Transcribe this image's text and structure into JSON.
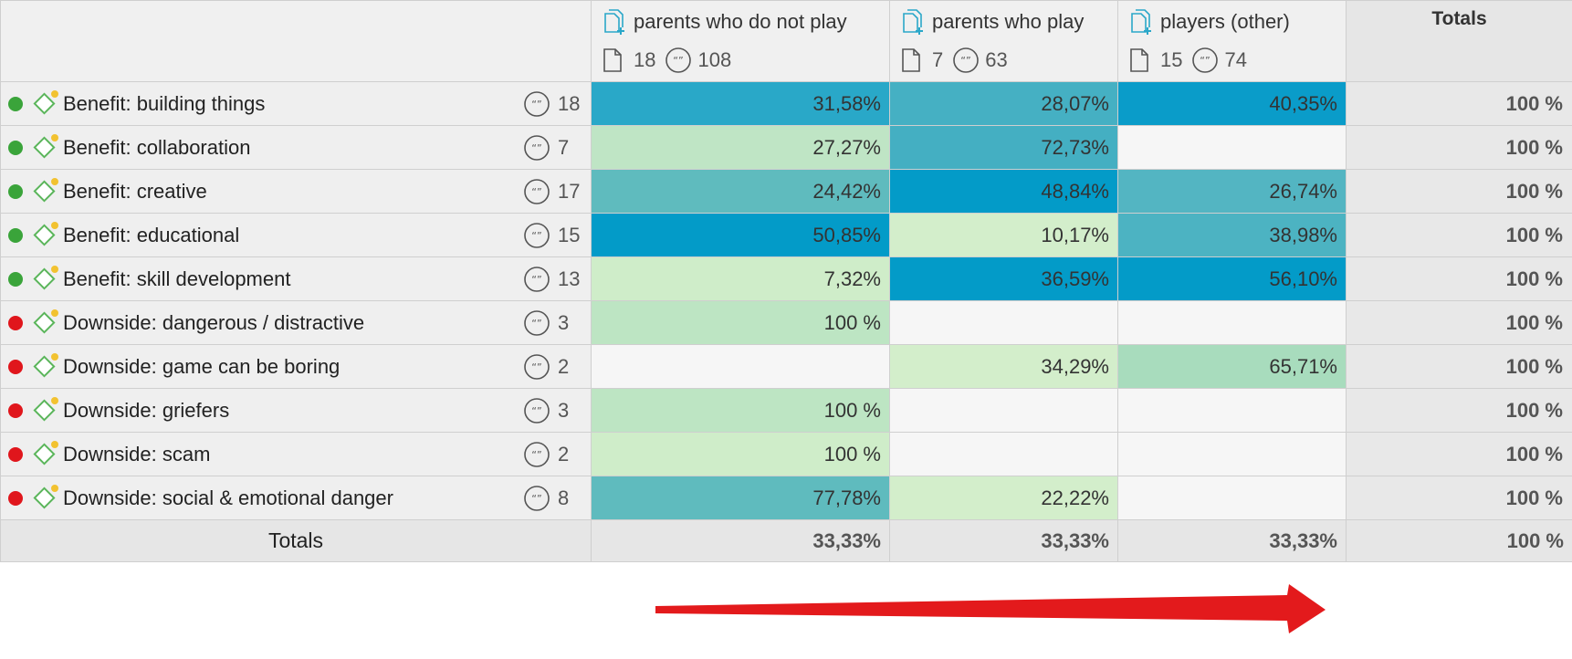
{
  "colors": {
    "empty": "#f6f6f6",
    "green_dot": "#3aa43a",
    "red_dot": "#e0161c",
    "arrow": "#e31a1c"
  },
  "columns": [
    {
      "title": "parents who do not play",
      "docs": "18",
      "quotes": "108"
    },
    {
      "title": "parents who play",
      "docs": "7",
      "quotes": "63"
    },
    {
      "title": "players (other)",
      "docs": "15",
      "quotes": "74"
    }
  ],
  "totals_header": "Totals",
  "rows": [
    {
      "label": "Benefit: building things",
      "status": "green",
      "count": "18",
      "cells": [
        {
          "v": "31,58%",
          "bg": "#29a8c8"
        },
        {
          "v": "28,07%",
          "bg": "#45b0c3"
        },
        {
          "v": "40,35%",
          "bg": "#0a9cc9"
        }
      ],
      "total": "100 %"
    },
    {
      "label": "Benefit: collaboration",
      "status": "green",
      "count": "7",
      "cells": [
        {
          "v": "27,27%",
          "bg": "#bfe5c5"
        },
        {
          "v": "72,73%",
          "bg": "#44afc2"
        },
        {
          "v": "",
          "bg": "#f6f6f6"
        }
      ],
      "total": "100 %"
    },
    {
      "label": "Benefit: creative",
      "status": "green",
      "count": "17",
      "cells": [
        {
          "v": "24,42%",
          "bg": "#5fbbbe"
        },
        {
          "v": "48,84%",
          "bg": "#039bc8"
        },
        {
          "v": "26,74%",
          "bg": "#53b5c2"
        }
      ],
      "total": "100 %"
    },
    {
      "label": "Benefit: educational",
      "status": "green",
      "count": "15",
      "cells": [
        {
          "v": "50,85%",
          "bg": "#039bc8"
        },
        {
          "v": "10,17%",
          "bg": "#d3eecb"
        },
        {
          "v": "38,98%",
          "bg": "#4cb3c2"
        }
      ],
      "total": "100 %"
    },
    {
      "label": "Benefit: skill development",
      "status": "green",
      "count": "13",
      "cells": [
        {
          "v": "7,32%",
          "bg": "#cfedc9"
        },
        {
          "v": "36,59%",
          "bg": "#039bc8"
        },
        {
          "v": "56,10%",
          "bg": "#039bc8"
        }
      ],
      "total": "100 %"
    },
    {
      "label": "Downside: dangerous / distractive",
      "status": "red",
      "count": "3",
      "cells": [
        {
          "v": "100 %",
          "bg": "#bde5c3"
        },
        {
          "v": "",
          "bg": "#f6f6f6"
        },
        {
          "v": "",
          "bg": "#f6f6f6"
        }
      ],
      "total": "100 %"
    },
    {
      "label": "Downside: game can be boring",
      "status": "red",
      "count": "2",
      "cells": [
        {
          "v": "",
          "bg": "#f6f6f6"
        },
        {
          "v": "34,29%",
          "bg": "#d3eecb"
        },
        {
          "v": "65,71%",
          "bg": "#a8dcbd"
        }
      ],
      "total": "100 %"
    },
    {
      "label": "Downside: griefers",
      "status": "red",
      "count": "3",
      "cells": [
        {
          "v": "100 %",
          "bg": "#bde5c3"
        },
        {
          "v": "",
          "bg": "#f6f6f6"
        },
        {
          "v": "",
          "bg": "#f6f6f6"
        }
      ],
      "total": "100 %"
    },
    {
      "label": "Downside: scam",
      "status": "red",
      "count": "2",
      "cells": [
        {
          "v": "100 %",
          "bg": "#cfedc9"
        },
        {
          "v": "",
          "bg": "#f6f6f6"
        },
        {
          "v": "",
          "bg": "#f6f6f6"
        }
      ],
      "total": "100 %"
    },
    {
      "label": "Downside: social & emotional danger",
      "status": "red",
      "count": "8",
      "cells": [
        {
          "v": "77,78%",
          "bg": "#5fbbbe"
        },
        {
          "v": "22,22%",
          "bg": "#d3eecb"
        },
        {
          "v": "",
          "bg": "#f6f6f6"
        }
      ],
      "total": "100 %"
    }
  ],
  "footer": {
    "label": "Totals",
    "values": [
      "33,33%",
      "33,33%",
      "33,33%"
    ],
    "total": "100 %"
  }
}
